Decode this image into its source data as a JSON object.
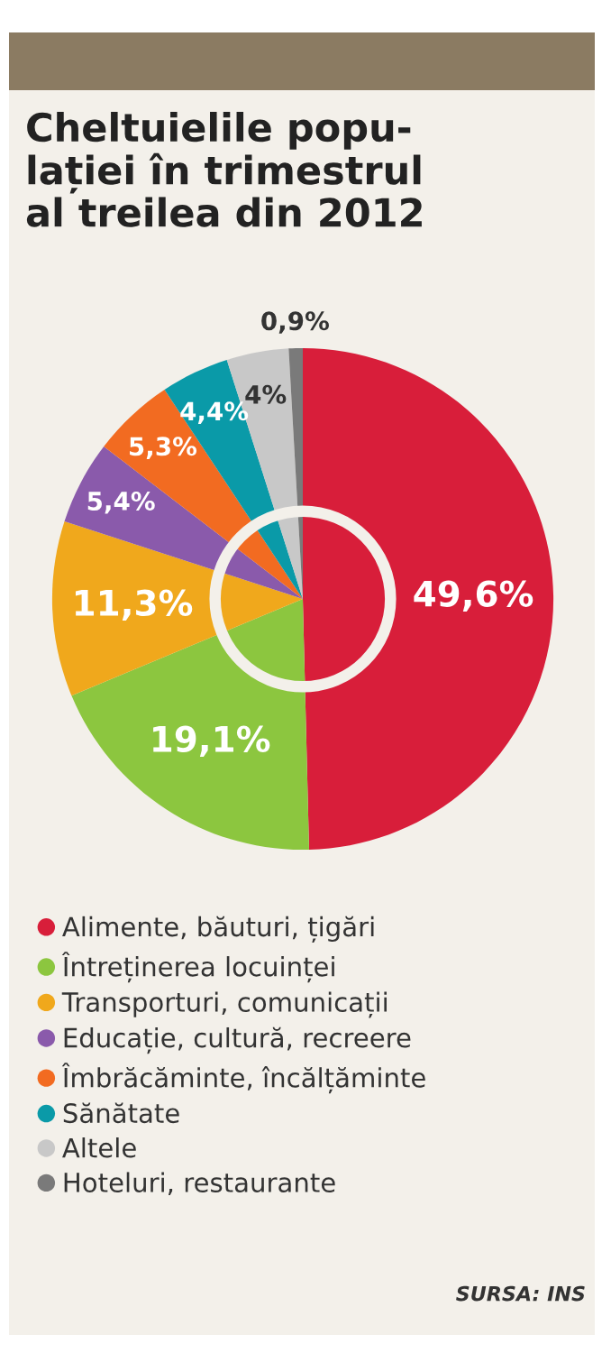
{
  "chart_data": {
    "type": "pie",
    "title": "Cheltuielile popu-\nlației în trimestrul\nal treilea din 2012",
    "categories": [
      "Alimente, băuturi, țigări",
      "Întreținerea locuinței",
      "Transporturi, comunicații",
      "Educație, cultură, recreere",
      "Îmbrăcăminte, încălțăminte",
      "Sănătate",
      "Altele",
      "Hoteluri, restaurante"
    ],
    "values": [
      49.6,
      19.1,
      11.3,
      5.4,
      5.3,
      4.4,
      4,
      0.9
    ],
    "value_labels": [
      "49,6%",
      "19,1%",
      "11,3%",
      "5,4%",
      "5,3%",
      "4,4%",
      "4%",
      "0,9%"
    ],
    "colors": [
      "#d81e3a",
      "#8cc63f",
      "#f0a81c",
      "#8a5aab",
      "#f26b21",
      "#0a9aa8",
      "#c8c8c8",
      "#7a7a7a"
    ],
    "legend": "bottom",
    "annotations": [
      "SURSA: INS"
    ]
  }
}
